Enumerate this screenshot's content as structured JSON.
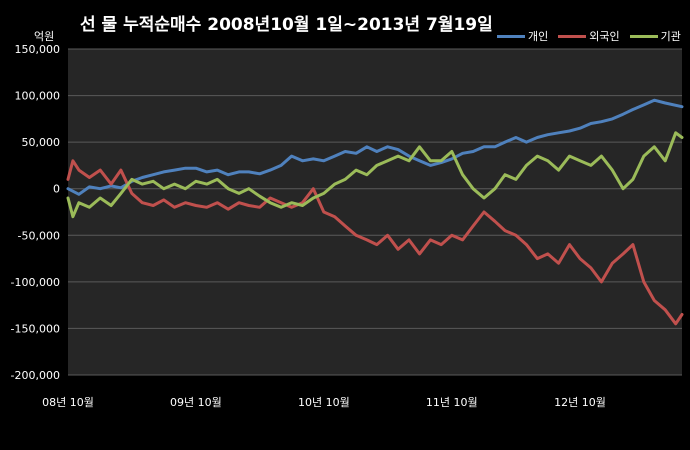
{
  "title": "선 물 누적순매수 2008년10월 1일~2013년 7월19일",
  "unit": "억원",
  "chart_data": {
    "type": "line",
    "title": "선 물 누적순매수 2008년10월 1일~2013년 7월19일",
    "ylabel": "억원",
    "ylim": [
      -200000,
      150000
    ],
    "yticks": [
      150000,
      100000,
      50000,
      0,
      -50000,
      -100000,
      -150000,
      -200000
    ],
    "ytick_labels": [
      "150,000",
      "100,000",
      "50,000",
      "0",
      "-50,000",
      "-100,000",
      "-150,000",
      "-200,000"
    ],
    "xlim": [
      "2008-10-01",
      "2013-07-19"
    ],
    "xticks": [
      "2008-10",
      "2009-10",
      "2010-10",
      "2011-10",
      "2012-10"
    ],
    "xtick_labels": [
      "08년 10월",
      "09년 10월",
      "10년 10월",
      "11년 10월",
      "12년 10월"
    ],
    "grid": true,
    "legend_position": "top-right",
    "background": "#262626",
    "series": [
      {
        "name": "개인",
        "color": "#4f81bd",
        "points": [
          [
            "2008-10-01",
            0
          ],
          [
            "2008-11-01",
            -6000
          ],
          [
            "2008-12-01",
            2000
          ],
          [
            "2009-01-01",
            0
          ],
          [
            "2009-02-01",
            3000
          ],
          [
            "2009-03-01",
            1000
          ],
          [
            "2009-04-01",
            8000
          ],
          [
            "2009-05-01",
            12000
          ],
          [
            "2009-06-01",
            15000
          ],
          [
            "2009-07-01",
            18000
          ],
          [
            "2009-08-01",
            20000
          ],
          [
            "2009-09-01",
            22000
          ],
          [
            "2009-10-01",
            22000
          ],
          [
            "2009-11-01",
            18000
          ],
          [
            "2009-12-01",
            20000
          ],
          [
            "2010-01-01",
            15000
          ],
          [
            "2010-02-01",
            18000
          ],
          [
            "2010-03-01",
            18000
          ],
          [
            "2010-04-01",
            16000
          ],
          [
            "2010-05-01",
            20000
          ],
          [
            "2010-06-01",
            25000
          ],
          [
            "2010-07-01",
            35000
          ],
          [
            "2010-08-01",
            30000
          ],
          [
            "2010-09-01",
            32000
          ],
          [
            "2010-10-01",
            30000
          ],
          [
            "2010-11-01",
            35000
          ],
          [
            "2010-12-01",
            40000
          ],
          [
            "2011-01-01",
            38000
          ],
          [
            "2011-02-01",
            45000
          ],
          [
            "2011-03-01",
            40000
          ],
          [
            "2011-04-01",
            45000
          ],
          [
            "2011-05-01",
            42000
          ],
          [
            "2011-06-01",
            35000
          ],
          [
            "2011-07-01",
            30000
          ],
          [
            "2011-08-01",
            25000
          ],
          [
            "2011-09-01",
            28000
          ],
          [
            "2011-10-01",
            32000
          ],
          [
            "2011-11-01",
            38000
          ],
          [
            "2011-12-01",
            40000
          ],
          [
            "2012-01-01",
            45000
          ],
          [
            "2012-02-01",
            45000
          ],
          [
            "2012-03-01",
            50000
          ],
          [
            "2012-04-01",
            55000
          ],
          [
            "2012-05-01",
            50000
          ],
          [
            "2012-06-01",
            55000
          ],
          [
            "2012-07-01",
            58000
          ],
          [
            "2012-08-01",
            60000
          ],
          [
            "2012-09-01",
            62000
          ],
          [
            "2012-10-01",
            65000
          ],
          [
            "2012-11-01",
            70000
          ],
          [
            "2012-12-01",
            72000
          ],
          [
            "2013-01-01",
            75000
          ],
          [
            "2013-02-01",
            80000
          ],
          [
            "2013-03-01",
            85000
          ],
          [
            "2013-04-01",
            90000
          ],
          [
            "2013-05-01",
            95000
          ],
          [
            "2013-06-01",
            92000
          ],
          [
            "2013-07-19",
            88000
          ]
        ]
      },
      {
        "name": "외국인",
        "color": "#c0504d",
        "points": [
          [
            "2008-10-01",
            10000
          ],
          [
            "2008-10-15",
            30000
          ],
          [
            "2008-11-01",
            20000
          ],
          [
            "2008-12-01",
            12000
          ],
          [
            "2009-01-01",
            20000
          ],
          [
            "2009-02-01",
            5000
          ],
          [
            "2009-03-01",
            20000
          ],
          [
            "2009-04-01",
            -5000
          ],
          [
            "2009-05-01",
            -15000
          ],
          [
            "2009-06-01",
            -18000
          ],
          [
            "2009-07-01",
            -12000
          ],
          [
            "2009-08-01",
            -20000
          ],
          [
            "2009-09-01",
            -15000
          ],
          [
            "2009-10-01",
            -18000
          ],
          [
            "2009-11-01",
            -20000
          ],
          [
            "2009-12-01",
            -15000
          ],
          [
            "2010-01-01",
            -22000
          ],
          [
            "2010-02-01",
            -15000
          ],
          [
            "2010-03-01",
            -18000
          ],
          [
            "2010-04-01",
            -20000
          ],
          [
            "2010-05-01",
            -10000
          ],
          [
            "2010-06-01",
            -15000
          ],
          [
            "2010-07-01",
            -20000
          ],
          [
            "2010-08-01",
            -15000
          ],
          [
            "2010-09-01",
            0
          ],
          [
            "2010-10-01",
            -25000
          ],
          [
            "2010-11-01",
            -30000
          ],
          [
            "2010-12-01",
            -40000
          ],
          [
            "2011-01-01",
            -50000
          ],
          [
            "2011-02-01",
            -55000
          ],
          [
            "2011-03-01",
            -60000
          ],
          [
            "2011-04-01",
            -50000
          ],
          [
            "2011-05-01",
            -65000
          ],
          [
            "2011-06-01",
            -55000
          ],
          [
            "2011-07-01",
            -70000
          ],
          [
            "2011-08-01",
            -55000
          ],
          [
            "2011-09-01",
            -60000
          ],
          [
            "2011-10-01",
            -50000
          ],
          [
            "2011-11-01",
            -55000
          ],
          [
            "2011-12-01",
            -40000
          ],
          [
            "2012-01-01",
            -25000
          ],
          [
            "2012-02-01",
            -35000
          ],
          [
            "2012-03-01",
            -45000
          ],
          [
            "2012-04-01",
            -50000
          ],
          [
            "2012-05-01",
            -60000
          ],
          [
            "2012-06-01",
            -75000
          ],
          [
            "2012-07-01",
            -70000
          ],
          [
            "2012-08-01",
            -80000
          ],
          [
            "2012-09-01",
            -60000
          ],
          [
            "2012-10-01",
            -75000
          ],
          [
            "2012-11-01",
            -85000
          ],
          [
            "2012-12-01",
            -100000
          ],
          [
            "2013-01-01",
            -80000
          ],
          [
            "2013-02-01",
            -70000
          ],
          [
            "2013-03-01",
            -60000
          ],
          [
            "2013-04-01",
            -100000
          ],
          [
            "2013-05-01",
            -120000
          ],
          [
            "2013-06-01",
            -130000
          ],
          [
            "2013-07-01",
            -145000
          ],
          [
            "2013-07-19",
            -135000
          ]
        ]
      },
      {
        "name": "기관",
        "color": "#9bbb59",
        "points": [
          [
            "2008-10-01",
            -10000
          ],
          [
            "2008-10-15",
            -30000
          ],
          [
            "2008-11-01",
            -15000
          ],
          [
            "2008-12-01",
            -20000
          ],
          [
            "2009-01-01",
            -10000
          ],
          [
            "2009-02-01",
            -18000
          ],
          [
            "2009-03-01",
            -5000
          ],
          [
            "2009-04-01",
            10000
          ],
          [
            "2009-05-01",
            5000
          ],
          [
            "2009-06-01",
            8000
          ],
          [
            "2009-07-01",
            0
          ],
          [
            "2009-08-01",
            5000
          ],
          [
            "2009-09-01",
            0
          ],
          [
            "2009-10-01",
            8000
          ],
          [
            "2009-11-01",
            5000
          ],
          [
            "2009-12-01",
            10000
          ],
          [
            "2010-01-01",
            0
          ],
          [
            "2010-02-01",
            -5000
          ],
          [
            "2010-03-01",
            0
          ],
          [
            "2010-04-01",
            -8000
          ],
          [
            "2010-05-01",
            -15000
          ],
          [
            "2010-06-01",
            -20000
          ],
          [
            "2010-07-01",
            -15000
          ],
          [
            "2010-08-01",
            -18000
          ],
          [
            "2010-09-01",
            -10000
          ],
          [
            "2010-10-01",
            -5000
          ],
          [
            "2010-11-01",
            5000
          ],
          [
            "2010-12-01",
            10000
          ],
          [
            "2011-01-01",
            20000
          ],
          [
            "2011-02-01",
            15000
          ],
          [
            "2011-03-01",
            25000
          ],
          [
            "2011-04-01",
            30000
          ],
          [
            "2011-05-01",
            35000
          ],
          [
            "2011-06-01",
            30000
          ],
          [
            "2011-07-01",
            45000
          ],
          [
            "2011-08-01",
            30000
          ],
          [
            "2011-09-01",
            30000
          ],
          [
            "2011-10-01",
            40000
          ],
          [
            "2011-11-01",
            15000
          ],
          [
            "2011-12-01",
            0
          ],
          [
            "2012-01-01",
            -10000
          ],
          [
            "2012-02-01",
            0
          ],
          [
            "2012-03-01",
            15000
          ],
          [
            "2012-04-01",
            10000
          ],
          [
            "2012-05-01",
            25000
          ],
          [
            "2012-06-01",
            35000
          ],
          [
            "2012-07-01",
            30000
          ],
          [
            "2012-08-01",
            20000
          ],
          [
            "2012-09-01",
            35000
          ],
          [
            "2012-10-01",
            30000
          ],
          [
            "2012-11-01",
            25000
          ],
          [
            "2012-12-01",
            35000
          ],
          [
            "2013-01-01",
            20000
          ],
          [
            "2013-02-01",
            0
          ],
          [
            "2013-03-01",
            10000
          ],
          [
            "2013-04-01",
            35000
          ],
          [
            "2013-05-01",
            45000
          ],
          [
            "2013-06-01",
            30000
          ],
          [
            "2013-07-01",
            60000
          ],
          [
            "2013-07-19",
            55000
          ]
        ]
      }
    ]
  }
}
